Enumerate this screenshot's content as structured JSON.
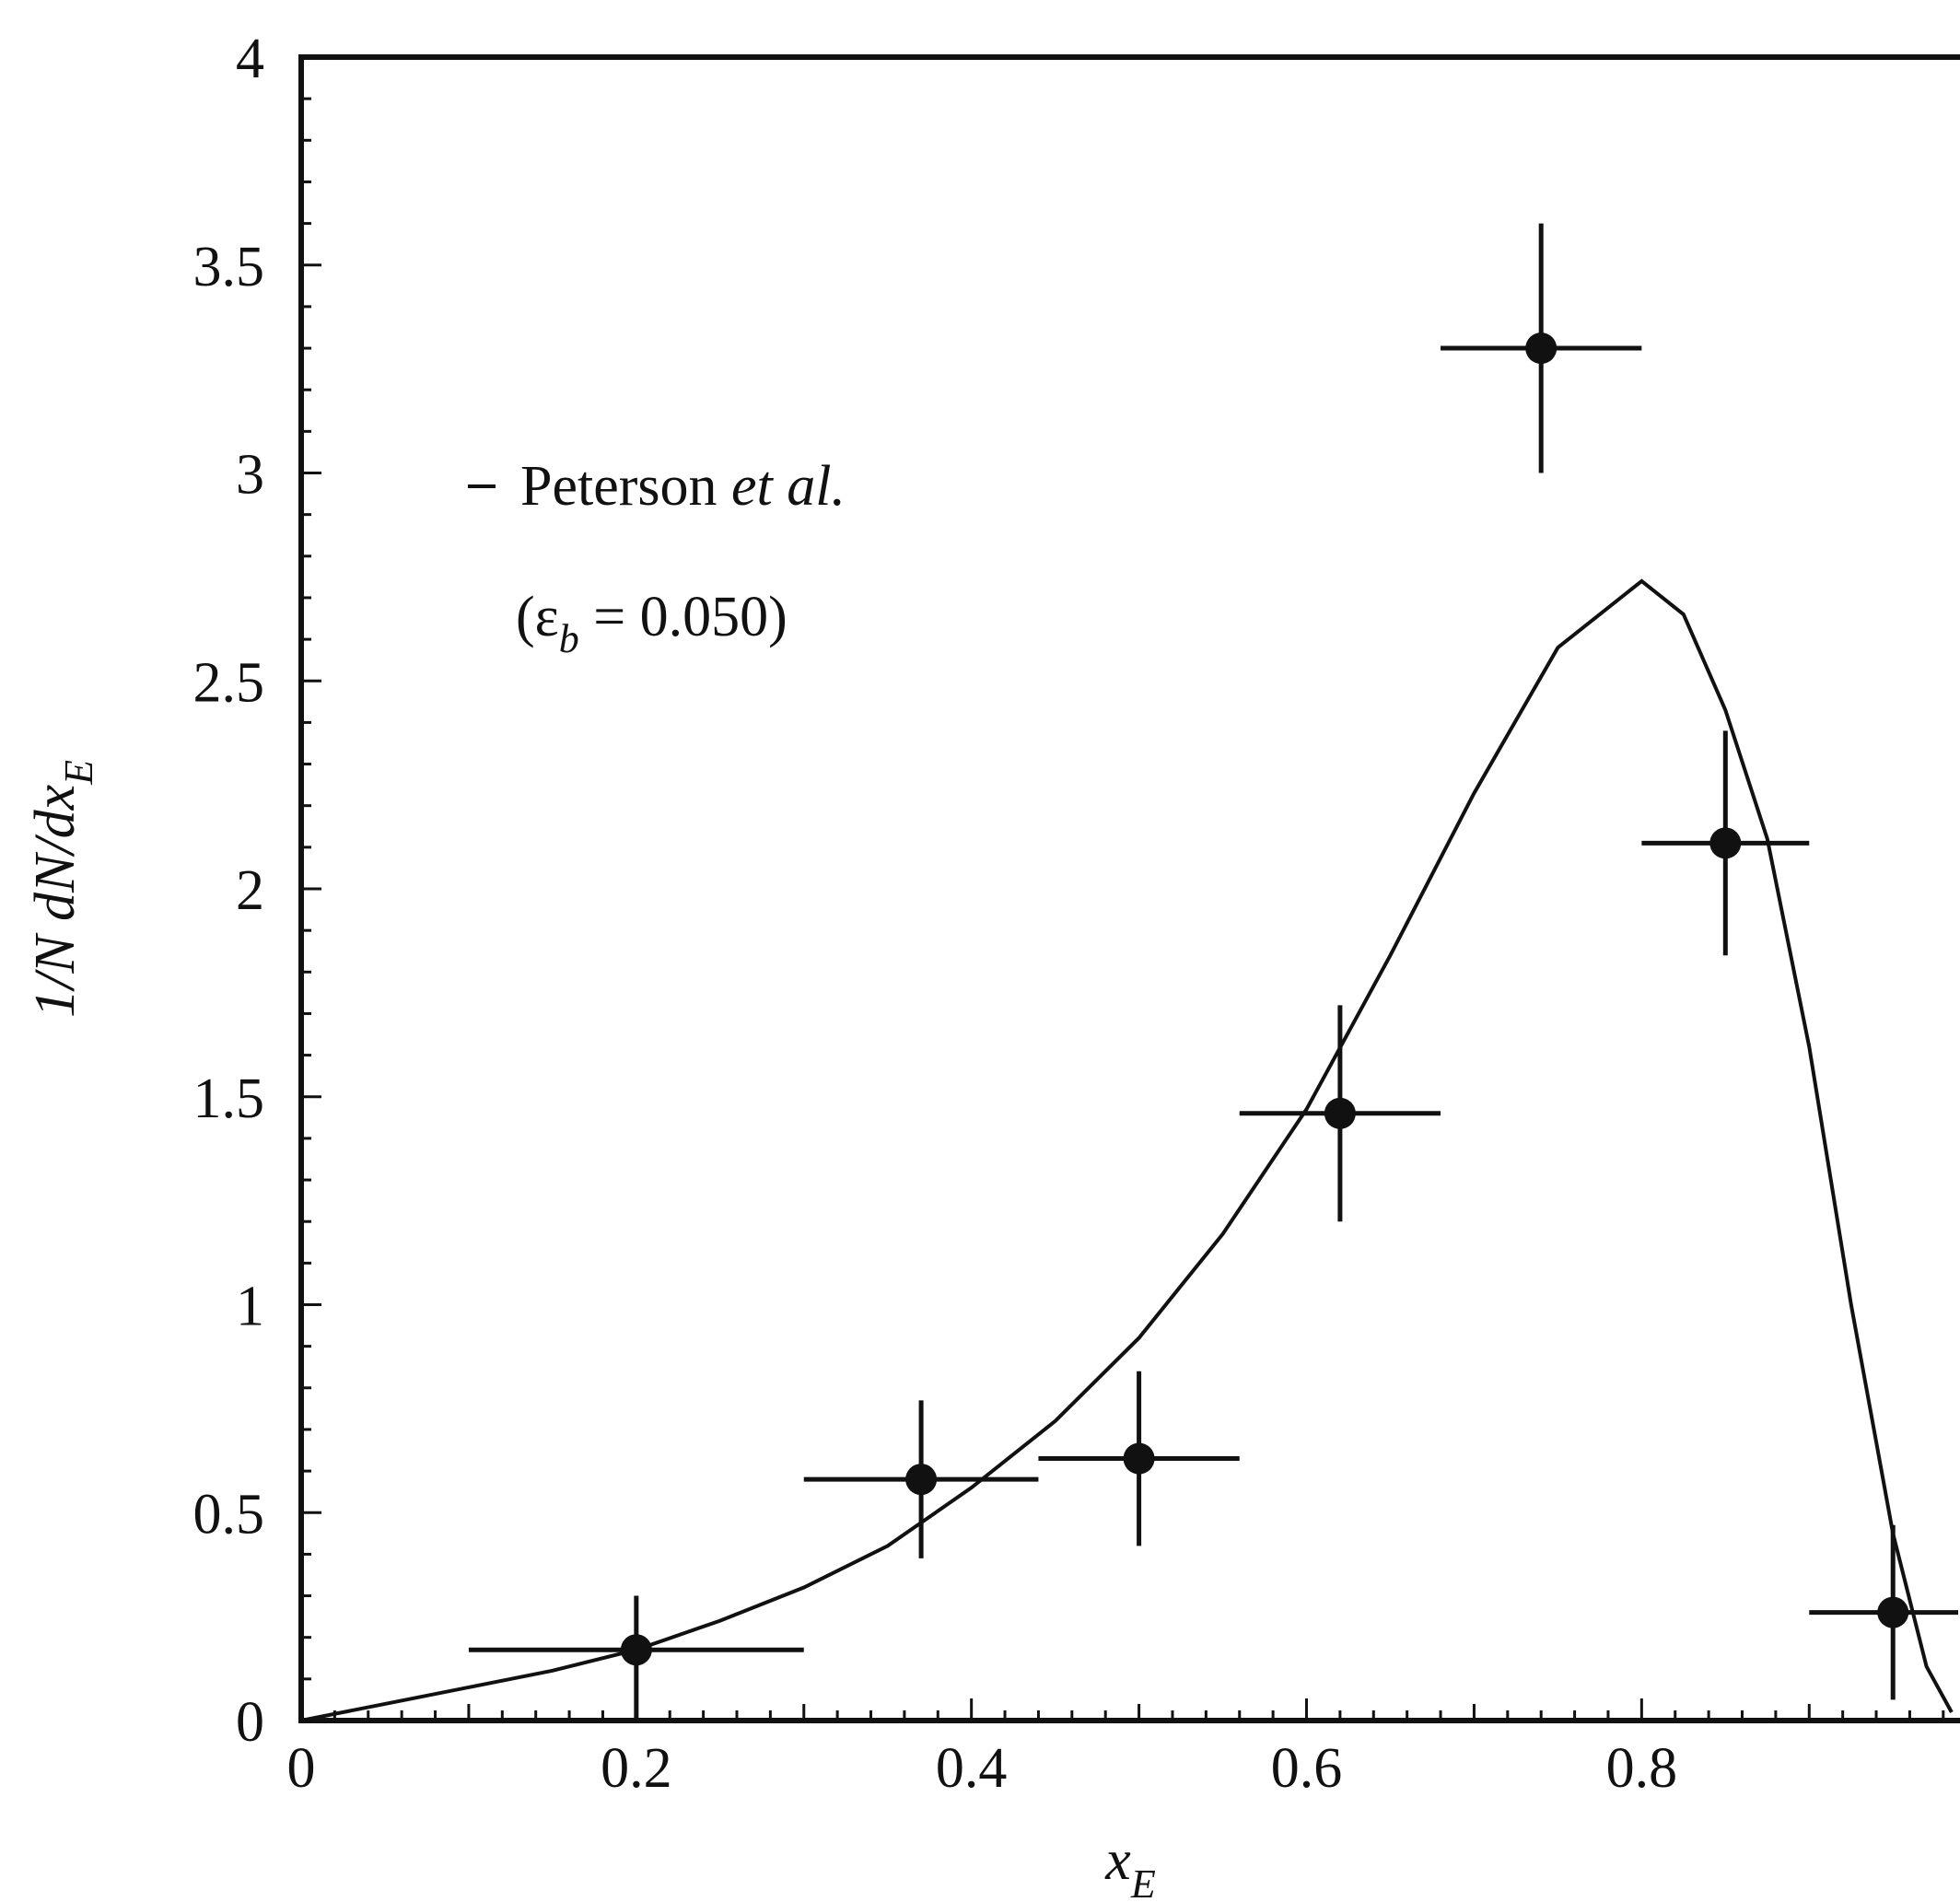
{
  "chart_data": {
    "type": "scatter",
    "title": "",
    "xlabel": "x",
    "xlabel_sub": "E",
    "ylabel": "1/N dN/dx",
    "ylabel_sub": "E",
    "xlim": [
      0,
      0.99
    ],
    "ylim": [
      0,
      4
    ],
    "x_ticks": [
      {
        "value": 0,
        "label": "0"
      },
      {
        "value": 0.2,
        "label": "0.2"
      },
      {
        "value": 0.4,
        "label": "0.4"
      },
      {
        "value": 0.6,
        "label": "0.6"
      },
      {
        "value": 0.8,
        "label": "0.8"
      }
    ],
    "y_ticks": [
      {
        "value": 0,
        "label": "0"
      },
      {
        "value": 0.5,
        "label": "0.5"
      },
      {
        "value": 1,
        "label": "1"
      },
      {
        "value": 1.5,
        "label": "1.5"
      },
      {
        "value": 2,
        "label": "2"
      },
      {
        "value": 2.5,
        "label": "2.5"
      },
      {
        "value": 3,
        "label": "3"
      },
      {
        "value": 3.5,
        "label": "3.5"
      },
      {
        "value": 4,
        "label": "4"
      }
    ],
    "grid": false,
    "legend": {
      "placement": "upper-left",
      "line1_main": "Peterson ",
      "line1_italic": "et al.",
      "line2_open": "(ε",
      "line2_sub": "b",
      "line2_close": " = 0.050)"
    },
    "series": [
      {
        "kind": "points-with-errors",
        "points": [
          {
            "x": 0.2,
            "y": 0.17,
            "xerr": 0.1,
            "yerr_up": 0.13,
            "yerr_down": 0.17
          },
          {
            "x": 0.37,
            "y": 0.58,
            "xerr": 0.07,
            "yerr_up": 0.19,
            "yerr_down": 0.19
          },
          {
            "x": 0.5,
            "y": 0.63,
            "xerr": 0.06,
            "yerr_up": 0.21,
            "yerr_down": 0.21
          },
          {
            "x": 0.62,
            "y": 1.46,
            "xerr": 0.06,
            "yerr_up": 0.26,
            "yerr_down": 0.26
          },
          {
            "x": 0.74,
            "y": 3.3,
            "xerr": 0.06,
            "yerr_up": 0.3,
            "yerr_down": 0.3
          },
          {
            "x": 0.85,
            "y": 2.11,
            "xerr": 0.05,
            "yerr_up": 0.27,
            "yerr_down": 0.27
          },
          {
            "x": 0.95,
            "y": 0.26,
            "xerr": 0.05,
            "yerr_up": 0.21,
            "yerr_down": 0.21
          }
        ]
      },
      {
        "kind": "curve",
        "points": [
          [
            0.0,
            0.0
          ],
          [
            0.05,
            0.04
          ],
          [
            0.1,
            0.08
          ],
          [
            0.15,
            0.12
          ],
          [
            0.2,
            0.17
          ],
          [
            0.25,
            0.24
          ],
          [
            0.3,
            0.32
          ],
          [
            0.35,
            0.42
          ],
          [
            0.4,
            0.56
          ],
          [
            0.45,
            0.72
          ],
          [
            0.5,
            0.92
          ],
          [
            0.55,
            1.17
          ],
          [
            0.6,
            1.47
          ],
          [
            0.65,
            1.84
          ],
          [
            0.7,
            2.23
          ],
          [
            0.75,
            2.58
          ],
          [
            0.8,
            2.74
          ],
          [
            0.825,
            2.66
          ],
          [
            0.85,
            2.43
          ],
          [
            0.875,
            2.12
          ],
          [
            0.9,
            1.62
          ],
          [
            0.925,
            1.0
          ],
          [
            0.95,
            0.45
          ],
          [
            0.97,
            0.13
          ],
          [
            0.985,
            0.02
          ]
        ]
      }
    ]
  }
}
